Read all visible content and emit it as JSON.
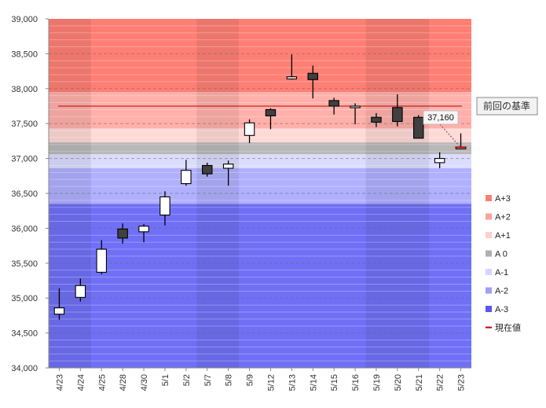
{
  "chart_data": {
    "type": "candlestick",
    "y_axis": {
      "min": 34000,
      "max": 39000,
      "major_step": 500,
      "tick_labels": [
        "34,000",
        "34,500",
        "35,000",
        "35,500",
        "36,000",
        "36,500",
        "37,000",
        "37,500",
        "38,000",
        "38,500",
        "39,000"
      ]
    },
    "categories": [
      "4/23",
      "4/24",
      "4/25",
      "4/28",
      "4/30",
      "5/1",
      "5/2",
      "5/7",
      "5/8",
      "5/9",
      "5/12",
      "5/13",
      "5/14",
      "5/15",
      "5/16",
      "5/19",
      "5/20",
      "5/21",
      "5/22",
      "5/23"
    ],
    "candles": [
      {
        "date": "4/23",
        "open": 34770,
        "high": 35140,
        "low": 34690,
        "close": 34860
      },
      {
        "date": "4/24",
        "open": 35010,
        "high": 35280,
        "low": 34950,
        "close": 35180
      },
      {
        "date": "4/25",
        "open": 35370,
        "high": 35830,
        "low": 35340,
        "close": 35700
      },
      {
        "date": "4/28",
        "open": 35990,
        "high": 36070,
        "low": 35780,
        "close": 35860
      },
      {
        "date": "4/30",
        "open": 35950,
        "high": 36060,
        "low": 35800,
        "close": 36030
      },
      {
        "date": "5/1",
        "open": 36190,
        "high": 36530,
        "low": 36040,
        "close": 36450
      },
      {
        "date": "5/2",
        "open": 36640,
        "high": 36980,
        "low": 36610,
        "close": 36830
      },
      {
        "date": "5/7",
        "open": 36900,
        "high": 36940,
        "low": 36740,
        "close": 36780
      },
      {
        "date": "5/8",
        "open": 36860,
        "high": 36970,
        "low": 36610,
        "close": 36920
      },
      {
        "date": "5/9",
        "open": 37330,
        "high": 37560,
        "low": 37220,
        "close": 37510
      },
      {
        "date": "5/12",
        "open": 37700,
        "high": 37720,
        "low": 37420,
        "close": 37610
      },
      {
        "date": "5/13",
        "open": 38140,
        "high": 38490,
        "low": 38130,
        "close": 38170
      },
      {
        "date": "5/14",
        "open": 38220,
        "high": 38330,
        "low": 37860,
        "close": 38130
      },
      {
        "date": "5/15",
        "open": 37830,
        "high": 37870,
        "low": 37630,
        "close": 37750
      },
      {
        "date": "5/16",
        "open": 37740,
        "high": 37790,
        "low": 37490,
        "close": 37750
      },
      {
        "date": "5/19",
        "open": 37590,
        "high": 37650,
        "low": 37450,
        "close": 37520
      },
      {
        "date": "5/20",
        "open": 37730,
        "high": 37920,
        "low": 37460,
        "close": 37530
      },
      {
        "date": "5/21",
        "open": 37590,
        "high": 37620,
        "low": 37290,
        "close": 37290
      },
      {
        "date": "5/22",
        "open": 36940,
        "high": 37090,
        "low": 36860,
        "close": 37000
      },
      {
        "date": "5/23",
        "open": 37140,
        "high": 37360,
        "low": 37130,
        "close": 37160
      }
    ],
    "bands": [
      {
        "name": "A+3",
        "from": 37950,
        "to": 39000,
        "color": "#ff7f75"
      },
      {
        "name": "A+2",
        "from": 37430,
        "to": 37950,
        "color": "#ffb0aa"
      },
      {
        "name": "A+1",
        "from": 37230,
        "to": 37430,
        "color": "#ffd9d6"
      },
      {
        "name": "A 0",
        "from": 37060,
        "to": 37230,
        "color": "#b8b8b8"
      },
      {
        "name": "A-1",
        "from": 36860,
        "to": 37060,
        "color": "#dcdcff"
      },
      {
        "name": "A-2",
        "from": 36350,
        "to": 36860,
        "color": "#b0b0ff"
      },
      {
        "name": "A-3",
        "from": 34000,
        "to": 36350,
        "color": "#7070f6"
      }
    ],
    "column_shading": [
      {
        "from_index": 0,
        "to_index": 1,
        "dark": true
      },
      {
        "from_index": 2,
        "to_index": 6,
        "dark": false
      },
      {
        "from_index": 7,
        "to_index": 8,
        "dark": true
      },
      {
        "from_index": 9,
        "to_index": 14,
        "dark": false
      },
      {
        "from_index": 15,
        "to_index": 17,
        "dark": true
      },
      {
        "from_index": 18,
        "to_index": 19,
        "dark": false
      }
    ],
    "reference_line": {
      "label": "前回の基準",
      "value": 37750,
      "color": "#c00000"
    },
    "current_price": {
      "label": "現在値",
      "value": 37160,
      "display": "37,160",
      "color": "#c00000"
    },
    "legend": [
      {
        "label": "A+3",
        "color": "#ff7f75"
      },
      {
        "label": "A+2",
        "color": "#ffa09a"
      },
      {
        "label": "A+1",
        "color": "#ffd0cc"
      },
      {
        "label": "A 0",
        "color": "#b0b0b0"
      },
      {
        "label": "A-1",
        "color": "#d4d4ff"
      },
      {
        "label": "A-2",
        "color": "#a0a0f8"
      },
      {
        "label": "A-3",
        "color": "#5858f0"
      },
      {
        "label": "現在値",
        "color": "#c00000",
        "line": true
      }
    ],
    "legend_position": "right",
    "grid": true,
    "up_color": "#ffffff",
    "down_color": "#404040"
  }
}
